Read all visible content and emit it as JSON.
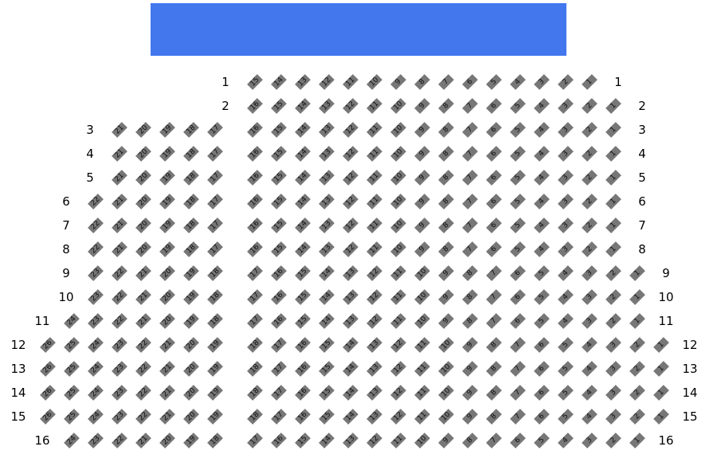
{
  "screen": {
    "color": "#4277ee"
  },
  "seat_color": "#777777",
  "rows": [
    {
      "label": "1",
      "left": [],
      "center": [
        15,
        14,
        13,
        12,
        11,
        10,
        9,
        8,
        7,
        6,
        5,
        4,
        3,
        2,
        1
      ]
    },
    {
      "label": "2",
      "left": [],
      "center": [
        16,
        15,
        14,
        13,
        12,
        11,
        10,
        9,
        8,
        7,
        6,
        5,
        4,
        3,
        2,
        1
      ]
    },
    {
      "label": "3",
      "left": [
        21,
        20,
        19,
        18,
        17
      ],
      "center": [
        16,
        15,
        14,
        13,
        12,
        11,
        10,
        9,
        8,
        7,
        6,
        5,
        4,
        3,
        2,
        1
      ]
    },
    {
      "label": "4",
      "left": [
        21,
        20,
        19,
        18,
        17
      ],
      "center": [
        16,
        15,
        14,
        13,
        12,
        11,
        10,
        9,
        8,
        7,
        6,
        5,
        4,
        3,
        2,
        1
      ]
    },
    {
      "label": "5",
      "left": [
        21,
        20,
        19,
        18,
        17
      ],
      "center": [
        16,
        15,
        14,
        13,
        12,
        11,
        10,
        9,
        8,
        7,
        6,
        5,
        4,
        3,
        2,
        1
      ]
    },
    {
      "label": "6",
      "left": [
        22,
        21,
        20,
        19,
        18,
        17
      ],
      "center": [
        16,
        15,
        14,
        13,
        12,
        11,
        10,
        9,
        8,
        7,
        6,
        5,
        4,
        3,
        2,
        1
      ]
    },
    {
      "label": "7",
      "left": [
        22,
        21,
        20,
        19,
        18,
        17
      ],
      "center": [
        16,
        15,
        14,
        13,
        12,
        11,
        10,
        9,
        8,
        7,
        6,
        5,
        4,
        3,
        2,
        1
      ]
    },
    {
      "label": "8",
      "left": [
        22,
        21,
        20,
        19,
        18,
        17
      ],
      "center": [
        16,
        15,
        14,
        13,
        12,
        11,
        10,
        9,
        8,
        7,
        6,
        5,
        4,
        3,
        2,
        1
      ]
    },
    {
      "label": "9",
      "left": [
        23,
        22,
        21,
        20,
        19,
        18
      ],
      "center": [
        17,
        16,
        15,
        14,
        13,
        12,
        11,
        10,
        9,
        8,
        7,
        6,
        5,
        4,
        3,
        2,
        1
      ]
    },
    {
      "label": "10",
      "left": [
        23,
        22,
        21,
        20,
        19,
        18
      ],
      "center": [
        17,
        16,
        15,
        14,
        13,
        12,
        11,
        10,
        9,
        8,
        7,
        6,
        5,
        4,
        3,
        2,
        1
      ]
    },
    {
      "label": "11",
      "left": [
        24,
        23,
        22,
        21,
        20,
        19,
        18
      ],
      "center": [
        17,
        16,
        15,
        14,
        13,
        12,
        11,
        10,
        9,
        8,
        7,
        6,
        5,
        4,
        3,
        2,
        1
      ]
    },
    {
      "label": "12",
      "left": [
        26,
        25,
        24,
        23,
        22,
        21,
        20,
        19
      ],
      "center": [
        18,
        17,
        16,
        15,
        14,
        13,
        12,
        11,
        10,
        9,
        8,
        7,
        6,
        5,
        4,
        3,
        2,
        1
      ]
    },
    {
      "label": "13",
      "left": [
        26,
        25,
        24,
        23,
        22,
        21,
        20,
        19
      ],
      "center": [
        18,
        17,
        16,
        15,
        14,
        13,
        12,
        11,
        10,
        9,
        8,
        7,
        6,
        5,
        4,
        3,
        2,
        1
      ]
    },
    {
      "label": "14",
      "left": [
        26,
        25,
        24,
        23,
        22,
        21,
        20,
        19
      ],
      "center": [
        18,
        17,
        16,
        15,
        14,
        13,
        12,
        11,
        10,
        9,
        8,
        7,
        6,
        5,
        4,
        3,
        2,
        1
      ]
    },
    {
      "label": "15",
      "left": [
        26,
        25,
        24,
        23,
        22,
        21,
        20,
        19
      ],
      "center": [
        18,
        17,
        16,
        15,
        14,
        13,
        12,
        11,
        10,
        9,
        8,
        7,
        6,
        5,
        4,
        3,
        2,
        1
      ]
    },
    {
      "label": "16",
      "left": [
        24,
        23,
        22,
        21,
        20,
        19,
        18
      ],
      "center": [
        17,
        16,
        15,
        14,
        13,
        12,
        11,
        10,
        9,
        8,
        7,
        6,
        5,
        4,
        3,
        2,
        1
      ]
    }
  ]
}
